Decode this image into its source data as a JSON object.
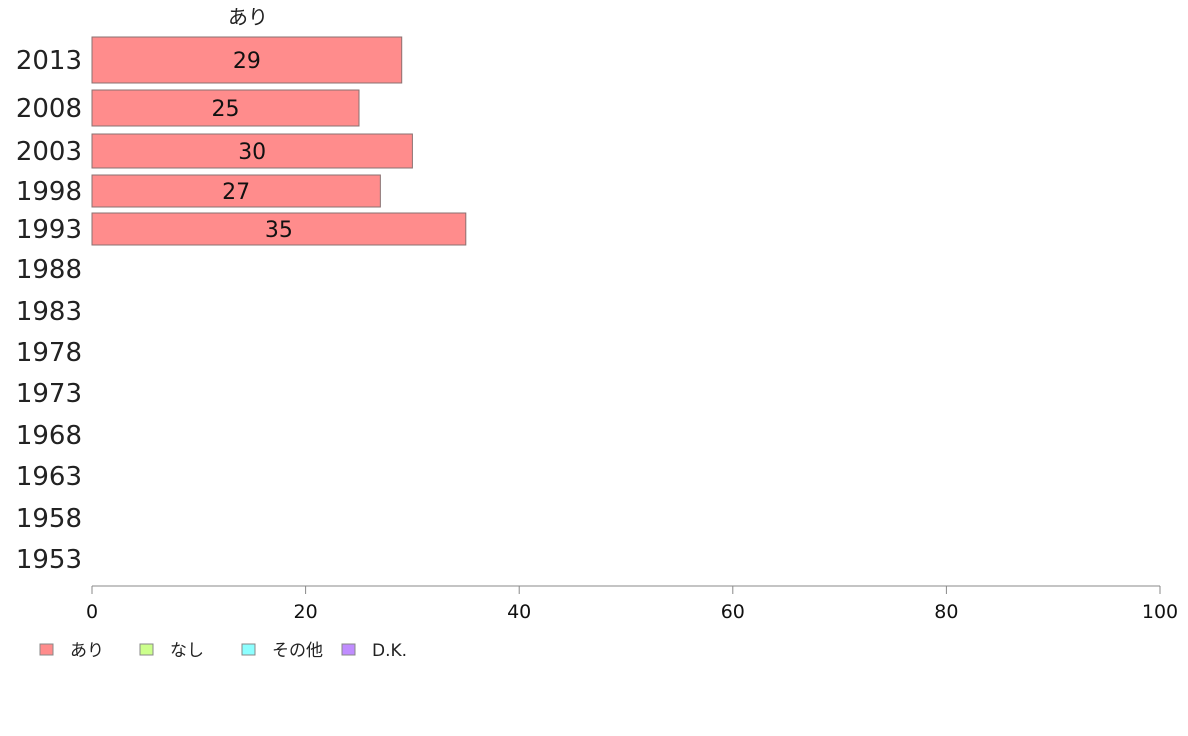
{
  "chart_data": {
    "type": "bar",
    "orientation": "horizontal",
    "stacked": true,
    "categories": [
      "2013",
      "2008",
      "2003",
      "1998",
      "1993",
      "1988",
      "1983",
      "1978",
      "1973",
      "1968",
      "1963",
      "1958",
      "1953"
    ],
    "series": [
      {
        "name": "あり",
        "color": "#ff8c8c",
        "values": [
          29,
          25,
          30,
          27,
          35,
          null,
          null,
          null,
          null,
          null,
          null,
          null,
          null
        ]
      },
      {
        "name": "なし",
        "color": "#ccff8c",
        "values": [
          null,
          null,
          null,
          null,
          null,
          null,
          null,
          null,
          null,
          null,
          null,
          null,
          null
        ]
      },
      {
        "name": "その他",
        "color": "#8cffff",
        "values": [
          null,
          null,
          null,
          null,
          null,
          null,
          null,
          null,
          null,
          null,
          null,
          null,
          null
        ]
      },
      {
        "name": "D.K.",
        "color": "#c08cff",
        "values": [
          null,
          null,
          null,
          null,
          null,
          null,
          null,
          null,
          null,
          null,
          null,
          null,
          null
        ]
      }
    ],
    "column_header": "あり",
    "xlim": [
      0,
      100
    ],
    "xticks": [
      0,
      20,
      40,
      60,
      80,
      100
    ],
    "grid": false,
    "legend_position": "bottom-left"
  }
}
